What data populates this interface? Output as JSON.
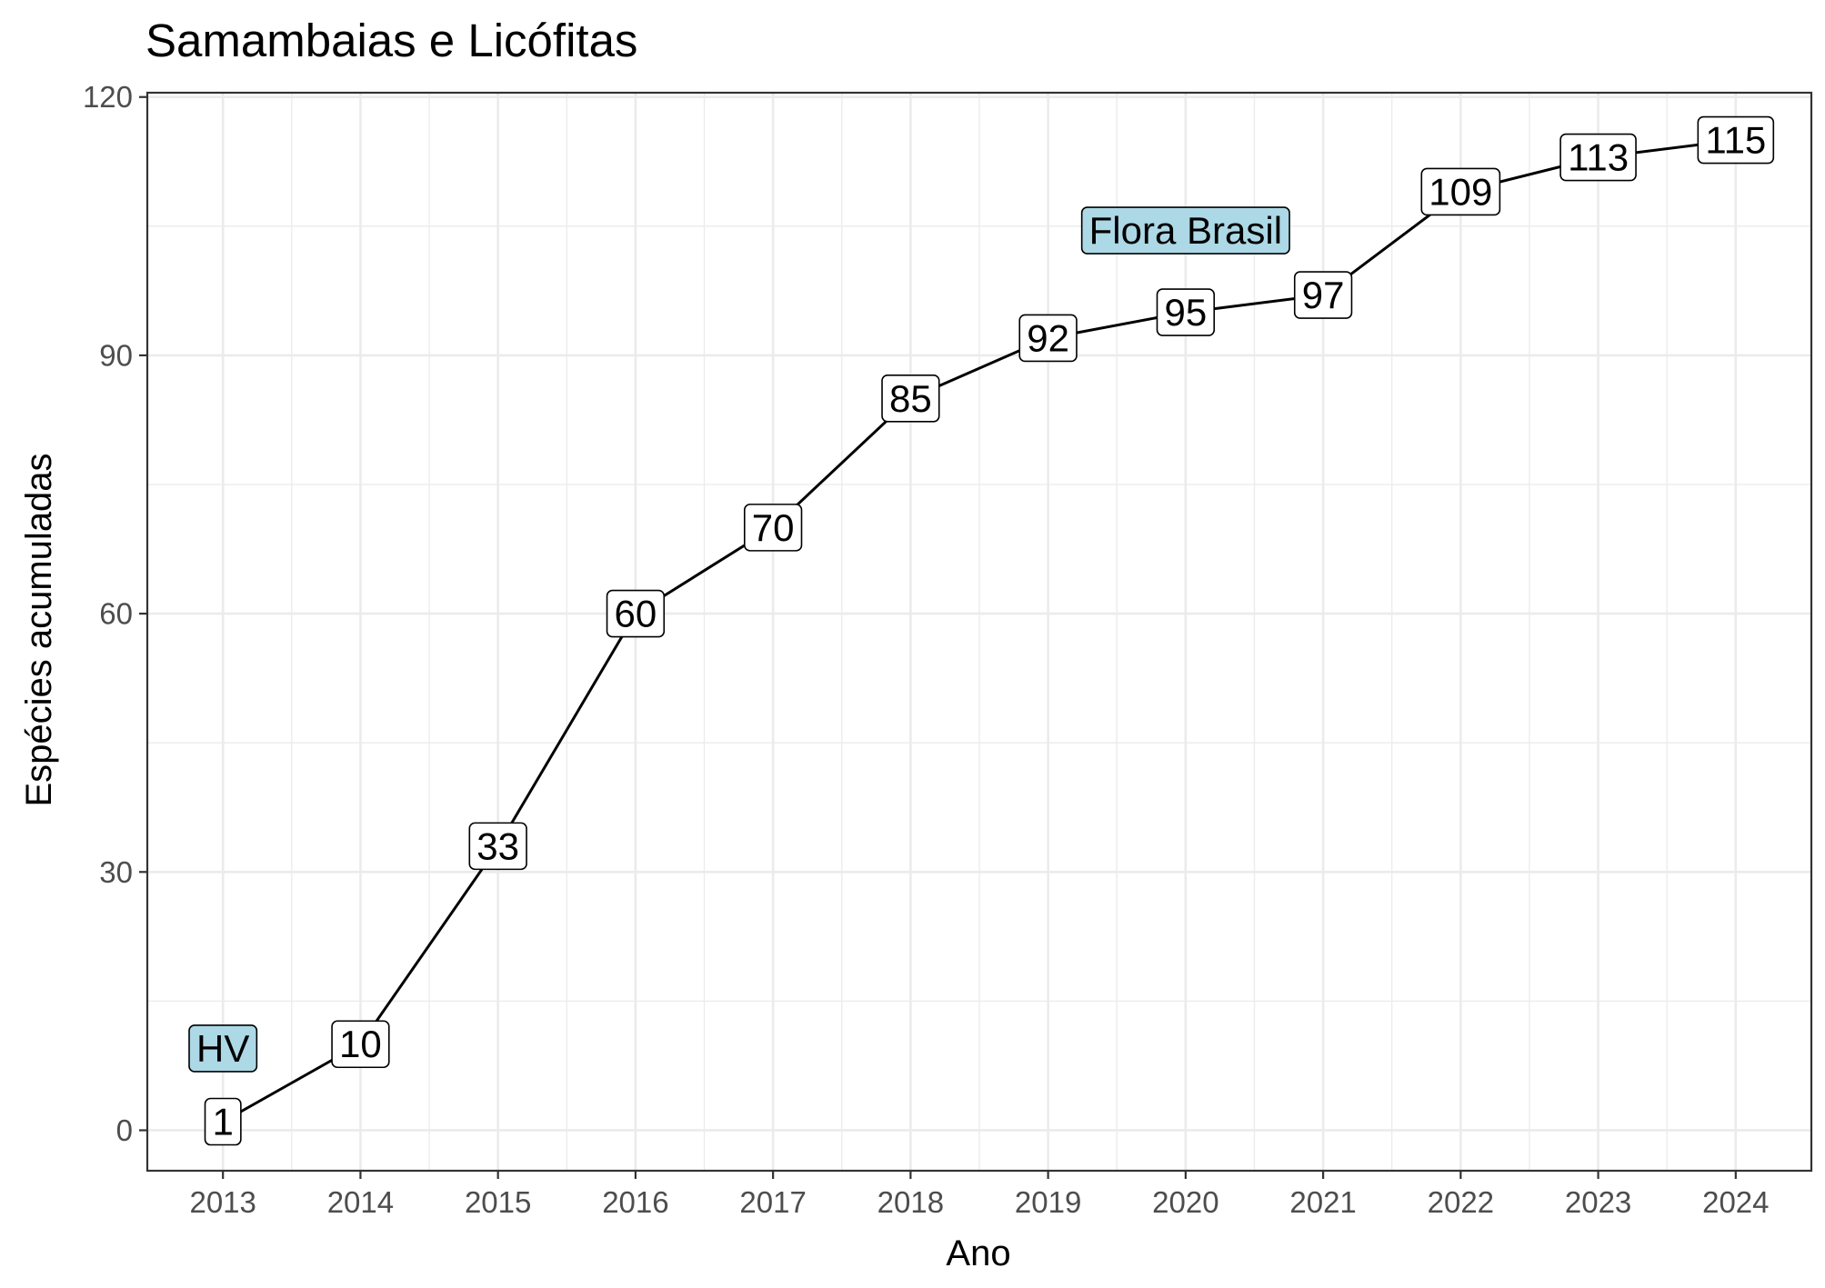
{
  "chart_data": {
    "type": "line",
    "title": "Samambaias e Licófitas",
    "xlabel": "Ano",
    "ylabel": "Espécies acumuladas",
    "x": [
      2013,
      2014,
      2015,
      2016,
      2017,
      2018,
      2019,
      2020,
      2021,
      2022,
      2023,
      2024
    ],
    "series": [
      {
        "values": [
          1,
          10,
          33,
          60,
          70,
          85,
          92,
          95,
          97,
          109,
          113,
          115
        ],
        "data_labels": [
          "1",
          "10",
          "33",
          "60",
          "70",
          "85",
          "92",
          "95",
          "97",
          "109",
          "113",
          "115"
        ]
      }
    ],
    "x_ticks": [
      "2013",
      "2014",
      "2015",
      "2016",
      "2017",
      "2018",
      "2019",
      "2020",
      "2021",
      "2022",
      "2023",
      "2024"
    ],
    "y_ticks": [
      "0",
      "30",
      "60",
      "90",
      "120"
    ],
    "y_tick_values": [
      0,
      30,
      60,
      90,
      120
    ],
    "xlim": [
      2012.45,
      2024.55
    ],
    "ylim": [
      -4.7,
      120.5
    ],
    "grid": true,
    "legend": "none",
    "annotations": [
      {
        "text": "HV",
        "x": 2013,
        "y": 9.5
      },
      {
        "text": "Flora Brasil",
        "x": 2020,
        "y": 104.5
      }
    ],
    "colors": {
      "line": "#000000",
      "label_fill": "#ffffff",
      "annotation_fill": "#add8e6",
      "grid": "#ebebeb",
      "panel_border": "#333333",
      "tick_text": "#4d4d4d"
    }
  }
}
